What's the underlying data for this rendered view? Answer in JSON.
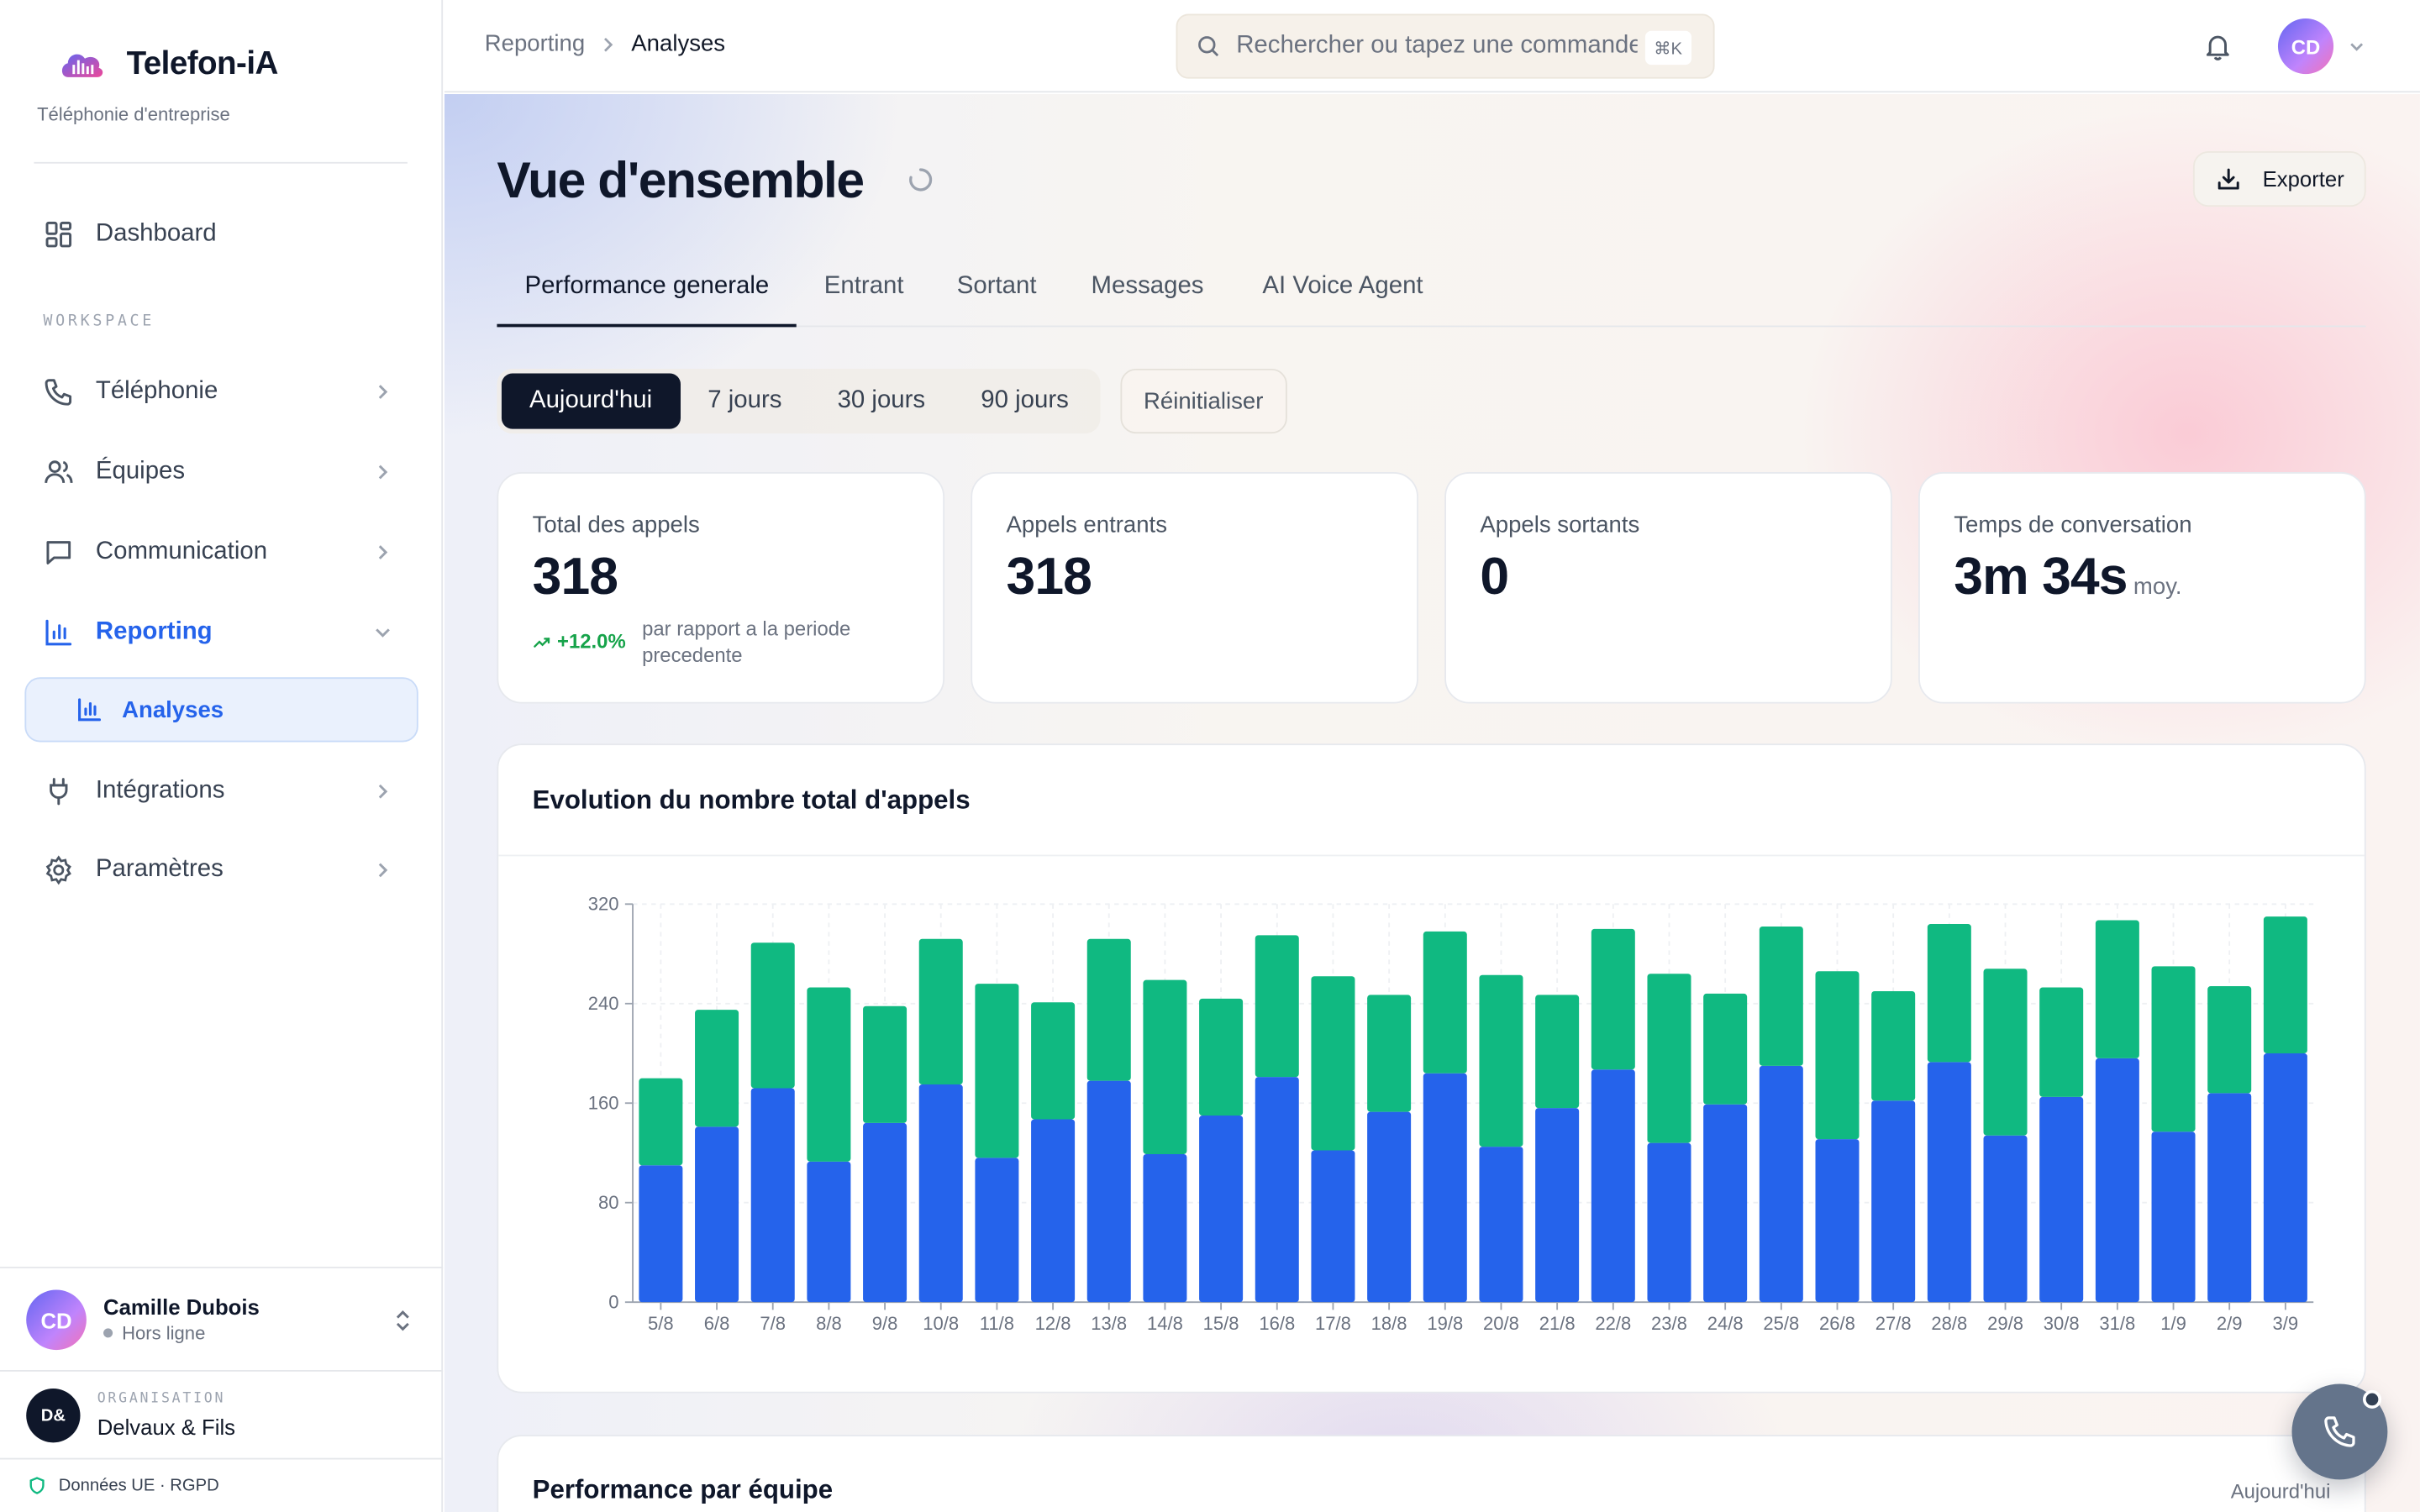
{
  "app": {
    "name": "Telefon-iA",
    "tagline": "Téléphonie d'entreprise"
  },
  "sidebar": {
    "dashboard": "Dashboard",
    "section_label": "WORKSPACE",
    "items": [
      {
        "label": "Téléphonie",
        "icon": "phone-icon"
      },
      {
        "label": "Équipes",
        "icon": "users-icon"
      },
      {
        "label": "Communication",
        "icon": "message-icon"
      },
      {
        "label": "Reporting",
        "icon": "bar-chart-icon"
      },
      {
        "label": "Intégrations",
        "icon": "plug-icon"
      },
      {
        "label": "Paramètres",
        "icon": "gear-icon"
      }
    ],
    "sub_item": "Analyses",
    "user": {
      "initials": "CD",
      "name": "Camille Dubois",
      "status": "Hors ligne"
    },
    "org": {
      "label": "ORGANISATION",
      "badge": "D&",
      "name": "Delvaux & Fils"
    },
    "footer": "Données UE · RGPD"
  },
  "topbar": {
    "breadcrumb": [
      "Reporting",
      "Analyses"
    ],
    "search_placeholder": "Rechercher ou tapez une commande",
    "search_shortcut": "⌘K",
    "avatar": "CD"
  },
  "page": {
    "title": "Vue d'ensemble",
    "export_label": "Exporter",
    "tabs": [
      "Performance generale",
      "Entrant",
      "Sortant",
      "Messages",
      "AI Voice Agent"
    ],
    "ranges": [
      "Aujourd'hui",
      "7 jours",
      "30 jours",
      "90 jours"
    ],
    "reset_label": "Réinitialiser"
  },
  "kpis": [
    {
      "label": "Total des appels",
      "value": "318",
      "trend": "+12.0%",
      "trend_text": "par rapport a la periode precedente"
    },
    {
      "label": "Appels entrants",
      "value": "318"
    },
    {
      "label": "Appels sortants",
      "value": "0"
    },
    {
      "label": "Temps de conversation",
      "value": "3m 34s",
      "suffix": "moy."
    }
  ],
  "chart_title": "Evolution du nombre total d'appels",
  "team_card": {
    "title": "Performance par équipe",
    "range": "Aujourd'hui"
  },
  "colors": {
    "primary": "#2563eb",
    "secondary": "#10b981",
    "dark": "#0f172a"
  },
  "chart_data": {
    "type": "bar",
    "stacked": true,
    "categories": [
      "5/8",
      "6/8",
      "7/8",
      "8/8",
      "9/8",
      "10/8",
      "11/8",
      "12/8",
      "13/8",
      "14/8",
      "15/8",
      "16/8",
      "17/8",
      "18/8",
      "19/8",
      "20/8",
      "21/8",
      "22/8",
      "23/8",
      "24/8",
      "25/8",
      "26/8",
      "27/8",
      "28/8",
      "29/8",
      "30/8",
      "31/8",
      "1/9",
      "2/9",
      "3/9"
    ],
    "series": [
      {
        "color": "#2563eb",
        "values": [
          110,
          141,
          172,
          113,
          144,
          175,
          116,
          147,
          178,
          119,
          150,
          181,
          122,
          153,
          184,
          125,
          156,
          187,
          128,
          159,
          190,
          131,
          162,
          193,
          134,
          165,
          196,
          137,
          168,
          200
        ]
      },
      {
        "color": "#10b981",
        "values": [
          70,
          94,
          117,
          140,
          94,
          117,
          140,
          94,
          114,
          140,
          94,
          114,
          140,
          94,
          114,
          138,
          91,
          113,
          136,
          89,
          112,
          135,
          88,
          111,
          134,
          88,
          111,
          133,
          86,
          110
        ]
      }
    ],
    "ylim": [
      0,
      320
    ],
    "yticks": [
      0,
      80,
      160,
      240,
      320
    ],
    "grid": true
  }
}
